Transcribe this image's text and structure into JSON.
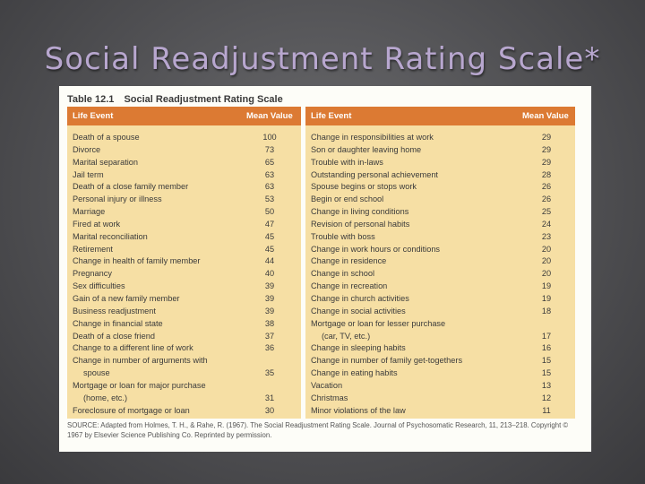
{
  "slide_title": "Social Readjustment Rating Scale*",
  "table": {
    "number": "Table 12.1",
    "title": "Social Readjustment Rating Scale",
    "header_event": "Life Event",
    "header_value": "Mean Value",
    "left_rows": [
      {
        "event": "Death of a spouse",
        "value": "100"
      },
      {
        "event": "Divorce",
        "value": "73"
      },
      {
        "event": "Marital separation",
        "value": "65"
      },
      {
        "event": "Jail term",
        "value": "63"
      },
      {
        "event": "Death of a close family member",
        "value": "63"
      },
      {
        "event": "Personal injury or illness",
        "value": "53"
      },
      {
        "event": "Marriage",
        "value": "50"
      },
      {
        "event": "Fired at work",
        "value": "47"
      },
      {
        "event": "Marital reconciliation",
        "value": "45"
      },
      {
        "event": "Retirement",
        "value": "45"
      },
      {
        "event": "Change in health of family member",
        "value": "44"
      },
      {
        "event": "Pregnancy",
        "value": "40"
      },
      {
        "event": "Sex difficulties",
        "value": "39"
      },
      {
        "event": "Gain of a new family member",
        "value": "39"
      },
      {
        "event": "Business readjustment",
        "value": "39"
      },
      {
        "event": "Change in financial state",
        "value": "38"
      },
      {
        "event": "Death of a close friend",
        "value": "37"
      },
      {
        "event": "Change to a different line of work",
        "value": "36"
      },
      {
        "event": "Change in number of arguments with",
        "value": ""
      },
      {
        "event": "spouse",
        "value": "35",
        "indent": true
      },
      {
        "event": "Mortgage or loan for major purchase",
        "value": ""
      },
      {
        "event": "(home, etc.)",
        "value": "31",
        "indent": true
      },
      {
        "event": "Foreclosure of mortgage or loan",
        "value": "30"
      }
    ],
    "right_rows": [
      {
        "event": "Change in responsibilities at work",
        "value": "29"
      },
      {
        "event": "Son or daughter leaving home",
        "value": "29"
      },
      {
        "event": "Trouble with in-laws",
        "value": "29"
      },
      {
        "event": "Outstanding personal achievement",
        "value": "28"
      },
      {
        "event": "Spouse begins or stops work",
        "value": "26"
      },
      {
        "event": "Begin or end school",
        "value": "26"
      },
      {
        "event": "Change in living conditions",
        "value": "25"
      },
      {
        "event": "Revision of personal habits",
        "value": "24"
      },
      {
        "event": "Trouble with boss",
        "value": "23"
      },
      {
        "event": "Change in work hours or conditions",
        "value": "20"
      },
      {
        "event": "Change in residence",
        "value": "20"
      },
      {
        "event": "Change in school",
        "value": "20"
      },
      {
        "event": "Change in recreation",
        "value": "19"
      },
      {
        "event": "Change in church activities",
        "value": "19"
      },
      {
        "event": "Change in social activities",
        "value": "18"
      },
      {
        "event": "Mortgage or loan for lesser purchase",
        "value": ""
      },
      {
        "event": "(car, TV, etc.)",
        "value": "17",
        "indent": true
      },
      {
        "event": "Change in sleeping habits",
        "value": "16"
      },
      {
        "event": "Change in number of family get-togethers",
        "value": "15"
      },
      {
        "event": "Change in eating habits",
        "value": "15"
      },
      {
        "event": "Vacation",
        "value": "13"
      },
      {
        "event": "Christmas",
        "value": "12"
      },
      {
        "event": "Minor violations of the law",
        "value": "11"
      }
    ],
    "source": "SOURCE: Adapted from Holmes, T. H., & Rahe, R. (1967). The Social Readjustment Rating Scale. Journal of Psychosomatic Research, 11, 213–218. Copyright © 1967 by Elsevier Science Publishing Co. Reprinted by permission."
  }
}
